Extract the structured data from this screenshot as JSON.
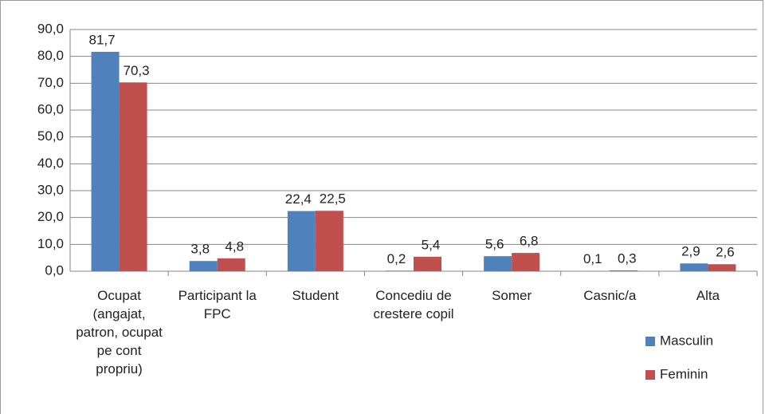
{
  "chart_data": {
    "type": "bar",
    "categories": [
      "Ocupat (angajat, patron, ocupat pe cont propriu)",
      "Participant la FPC",
      "Student",
      "Concediu de crestere copil",
      "Somer",
      "Casnic/a",
      "Alta"
    ],
    "series": [
      {
        "name": "Masculin",
        "color": "#4f81bd",
        "values": [
          81.7,
          3.8,
          22.4,
          0.2,
          5.6,
          0.1,
          2.9
        ],
        "value_labels": [
          "81,7",
          "3,8",
          "22,4",
          "0,2",
          "5,6",
          "0,1",
          "2,9"
        ]
      },
      {
        "name": "Feminin",
        "color": "#c0504d",
        "values": [
          70.3,
          4.8,
          22.5,
          5.4,
          6.8,
          0.3,
          2.6
        ],
        "value_labels": [
          "70,3",
          "4,8",
          "22,5",
          "5,4",
          "6,8",
          "0,3",
          "2,6"
        ]
      }
    ],
    "ylim": [
      0,
      90
    ],
    "yticks": [
      {
        "value": 0,
        "label": "0,0"
      },
      {
        "value": 10,
        "label": "10,0"
      },
      {
        "value": 20,
        "label": "20,0"
      },
      {
        "value": 30,
        "label": "30,0"
      },
      {
        "value": 40,
        "label": "40,0"
      },
      {
        "value": 50,
        "label": "50,0"
      },
      {
        "value": 60,
        "label": "60,0"
      },
      {
        "value": 70,
        "label": "70,0"
      },
      {
        "value": 80,
        "label": "80,0"
      },
      {
        "value": 90,
        "label": "90,0"
      }
    ],
    "grid": true,
    "legend": "right"
  }
}
